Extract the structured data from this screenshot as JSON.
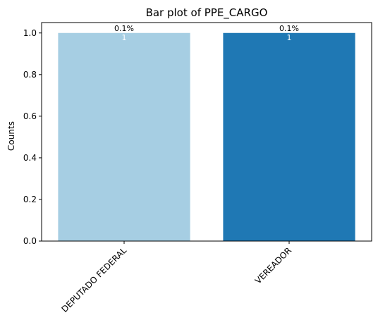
{
  "chart_data": {
    "type": "bar",
    "title": "Bar plot of PPE_CARGO",
    "xlabel": "",
    "ylabel": "Counts",
    "categories": [
      "DEPUTADO FEDERAL",
      "VEREADOR"
    ],
    "values": [
      1,
      1
    ],
    "bar_colors": [
      "#a6cee3",
      "#1f78b4"
    ],
    "percent_labels": [
      "0.1%",
      "0.1%"
    ],
    "value_labels": [
      "1",
      "1"
    ],
    "ylim": [
      0,
      1.05
    ],
    "yticks": [
      0.0,
      0.2,
      0.4,
      0.6,
      0.8,
      1.0
    ],
    "ytick_labels": [
      "0.0",
      "0.2",
      "0.4",
      "0.6",
      "0.8",
      "1.0"
    ],
    "grid": false,
    "legend": "none"
  }
}
